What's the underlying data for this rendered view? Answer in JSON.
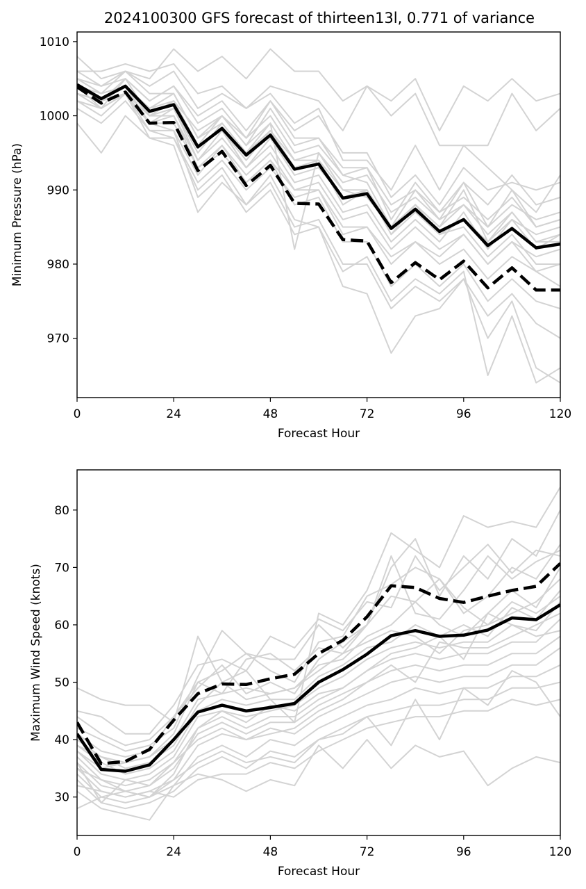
{
  "chart_data": [
    {
      "type": "line",
      "title": "2024100300 GFS forecast of thirteen13l, 0.771 of variance",
      "xlabel": "Forecast Hour",
      "ylabel": "Minimum Pressure (hPa)",
      "xlim": [
        0,
        120
      ],
      "ylim": [
        962,
        1011.3
      ],
      "xticks": [
        0,
        24,
        48,
        72,
        96,
        120
      ],
      "yticks": [
        970,
        980,
        990,
        1000,
        1010
      ],
      "x": [
        0,
        6,
        12,
        18,
        24,
        30,
        36,
        42,
        48,
        54,
        60,
        66,
        72,
        78,
        84,
        90,
        96,
        102,
        108,
        114,
        120
      ],
      "series": [
        {
          "style": "solid",
          "values": [
            1004.2,
            1002.3,
            1004.0,
            1000.6,
            1001.5,
            995.8,
            998.3,
            994.7,
            997.4,
            992.8,
            993.5,
            988.9,
            989.5,
            984.8,
            987.4,
            984.4,
            986.0,
            982.5,
            984.8,
            982.2,
            982.7
          ]
        },
        {
          "style": "dashed",
          "values": [
            1003.9,
            1001.7,
            1003.2,
            999.0,
            999.1,
            992.6,
            995.2,
            990.6,
            993.3,
            988.2,
            988.1,
            983.3,
            983.1,
            977.5,
            980.2,
            977.9,
            980.4,
            976.8,
            979.5,
            976.5,
            976.5
          ]
        }
      ],
      "ensemble": [
        [
          1008,
          1005,
          1006,
          1005,
          1009,
          1006,
          1008,
          1005,
          1009,
          1006,
          1006,
          1002,
          1004,
          1002,
          1005,
          998,
          1004,
          1002,
          1005,
          1002,
          1003
        ],
        [
          1006,
          1006,
          1007,
          1006,
          1007,
          1003,
          1004,
          1001,
          1004,
          1003,
          1002,
          998,
          1004,
          1000,
          1003,
          996,
          996,
          996,
          1003,
          998,
          1001
        ],
        [
          1005,
          1003,
          1006,
          1004,
          1006,
          1001,
          1003,
          1001,
          1003,
          999,
          1001,
          994,
          994,
          990,
          996,
          990,
          996,
          993,
          990,
          987,
          992
        ],
        [
          1004,
          1001,
          1005,
          1002,
          1004,
          999,
          1001,
          997,
          1002,
          997,
          997,
          993,
          993,
          986,
          991,
          987,
          991,
          988,
          992,
          988,
          989
        ],
        [
          1003,
          1002,
          1004,
          1000,
          1002,
          996,
          1000,
          996,
          999,
          994,
          995,
          991,
          992,
          987,
          989,
          986,
          988,
          985,
          988,
          986,
          987
        ],
        [
          1002,
          1000,
          1003,
          999,
          1001,
          994,
          998,
          993,
          997,
          992,
          993,
          989,
          990,
          985,
          988,
          984,
          986,
          983,
          986,
          984,
          985
        ],
        [
          1001,
          999,
          1002,
          998,
          998,
          992,
          996,
          992,
          995,
          990,
          991,
          986,
          987,
          982,
          985,
          982,
          984,
          980,
          983,
          981,
          982
        ],
        [
          999,
          995,
          1000,
          997,
          997,
          991,
          994,
          990,
          993,
          989,
          990,
          984,
          985,
          980,
          983,
          980,
          982,
          978,
          981,
          979,
          980
        ],
        [
          1006,
          1004,
          1006,
          1003,
          1003,
          997,
          999,
          995,
          998,
          993,
          994,
          988,
          990,
          984,
          987,
          984,
          985,
          981,
          984,
          980,
          980
        ],
        [
          1004,
          1002,
          1004,
          999,
          999,
          993,
          996,
          991,
          994,
          988,
          989,
          983,
          983,
          977,
          980,
          977,
          980,
          975,
          978,
          975,
          974
        ],
        [
          1003,
          1001,
          1003,
          998,
          997,
          990,
          993,
          988,
          991,
          985,
          986,
          980,
          980,
          974,
          977,
          975,
          978,
          973,
          976,
          972,
          970
        ],
        [
          1003,
          1002,
          1003,
          999,
          998,
          989,
          992,
          987,
          990,
          984,
          985,
          979,
          981,
          975,
          978,
          976,
          979,
          965,
          973,
          964,
          966
        ],
        [
          1002,
          1001,
          1003,
          997,
          996,
          987,
          991,
          988,
          992,
          986,
          985,
          977,
          976,
          968,
          973,
          974,
          978,
          970,
          975,
          966,
          964
        ],
        [
          1005,
          1003,
          1004,
          1001,
          1002,
          998,
          1000,
          996,
          1001,
          996,
          997,
          992,
          991,
          985,
          990,
          986,
          991,
          985,
          990,
          985,
          986
        ],
        [
          1004,
          1002,
          1005,
          1000,
          1001,
          995,
          999,
          995,
          999,
          982,
          995,
          990,
          990,
          984,
          988,
          985,
          990,
          983,
          987,
          983,
          984
        ],
        [
          1005,
          1004,
          1005,
          1002,
          1004,
          1000,
          1002,
          998,
          1002,
          998,
          1000,
          995,
          995,
          989,
          992,
          988,
          993,
          990,
          991,
          990,
          991
        ],
        [
          1003,
          1002,
          1004,
          1001,
          1003,
          997,
          1000,
          997,
          1000,
          995,
          996,
          992,
          993,
          988,
          990,
          987,
          989,
          986,
          989,
          985,
          986
        ],
        [
          1002,
          1001,
          1003,
          999,
          1000,
          994,
          997,
          993,
          996,
          991,
          992,
          987,
          988,
          983,
          986,
          983,
          987,
          982,
          986,
          982,
          984
        ],
        [
          1004,
          1003,
          1004,
          1000,
          1002,
          996,
          998,
          994,
          998,
          994,
          994,
          990,
          989,
          985,
          988,
          985,
          988,
          984,
          987,
          983,
          983
        ],
        [
          1003,
          1002,
          1003,
          1000,
          1000,
          993,
          995,
          991,
          994,
          990,
          990,
          985,
          985,
          981,
          983,
          981,
          984,
          980,
          983,
          979,
          977
        ]
      ]
    },
    {
      "type": "line",
      "title": "",
      "xlabel": "Forecast Hour",
      "ylabel": "Maximum Wind Speed (knots)",
      "xlim": [
        0,
        120
      ],
      "ylim": [
        23.3,
        87
      ],
      "xticks": [
        0,
        24,
        48,
        72,
        96,
        120
      ],
      "yticks": [
        30,
        40,
        50,
        60,
        70,
        80
      ],
      "x": [
        0,
        6,
        12,
        18,
        24,
        30,
        36,
        42,
        48,
        54,
        60,
        66,
        72,
        78,
        84,
        90,
        96,
        102,
        108,
        114,
        120
      ],
      "series": [
        {
          "style": "solid",
          "values": [
            41.0,
            34.8,
            34.5,
            35.6,
            40.0,
            44.8,
            46.0,
            45.0,
            45.6,
            46.3,
            50.0,
            52.2,
            54.9,
            58.1,
            59.0,
            58.0,
            58.2,
            59.1,
            61.2,
            60.9,
            63.5
          ]
        },
        {
          "style": "dashed",
          "values": [
            43.0,
            35.8,
            36.2,
            38.3,
            43.4,
            48.0,
            49.7,
            49.6,
            50.6,
            51.4,
            55.0,
            57.3,
            61.4,
            66.8,
            66.5,
            64.6,
            63.9,
            65.0,
            66.0,
            66.7,
            70.7
          ]
        }
      ],
      "ensemble": [
        [
          49,
          47,
          46,
          46,
          43,
          58,
          50,
          52,
          47,
          43,
          62,
          60,
          66,
          76,
          73,
          70,
          79,
          77,
          78,
          77,
          84
        ],
        [
          44,
          41,
          39,
          40,
          44,
          49,
          53,
          48,
          50,
          48,
          54,
          57,
          60,
          70,
          75,
          65,
          72,
          68,
          75,
          72,
          80
        ],
        [
          42,
          40,
          38,
          39,
          42,
          51,
          59,
          55,
          52,
          50,
          57,
          58,
          65,
          67,
          70,
          68,
          62,
          65,
          70,
          68,
          74
        ],
        [
          41,
          38,
          37,
          38,
          44,
          50,
          48,
          54,
          55,
          52,
          56,
          55,
          60,
          72,
          62,
          61,
          66,
          72,
          68,
          71,
          73
        ],
        [
          40,
          37,
          35,
          36,
          39,
          46,
          50,
          47,
          48,
          49,
          53,
          54,
          58,
          60,
          64,
          60,
          58,
          62,
          66,
          63,
          70
        ],
        [
          39,
          36,
          34,
          35,
          38,
          45,
          47,
          46,
          47,
          47,
          51,
          53,
          56,
          57,
          60,
          58,
          60,
          58,
          63,
          61,
          66
        ],
        [
          38,
          34,
          33,
          34,
          37,
          44,
          45,
          44,
          45,
          46,
          49,
          51,
          54,
          56,
          57,
          56,
          57,
          57,
          60,
          59,
          64
        ],
        [
          37,
          33,
          32,
          33,
          36,
          42,
          44,
          42,
          44,
          44,
          47,
          49,
          52,
          54,
          55,
          54,
          55,
          55,
          57,
          57,
          61
        ],
        [
          36,
          32,
          31,
          32,
          35,
          41,
          43,
          41,
          43,
          43,
          46,
          48,
          50,
          52,
          53,
          52,
          53,
          53,
          55,
          55,
          58
        ],
        [
          35,
          31,
          30,
          31,
          33,
          39,
          41,
          40,
          42,
          41,
          44,
          46,
          48,
          50,
          51,
          50,
          51,
          51,
          53,
          53,
          56
        ],
        [
          34,
          30,
          29,
          30,
          32,
          37,
          39,
          37,
          40,
          39,
          42,
          44,
          46,
          47,
          49,
          48,
          49,
          49,
          51,
          51,
          53
        ],
        [
          33,
          29,
          28,
          29,
          31,
          35,
          37,
          35,
          38,
          37,
          40,
          42,
          44,
          45,
          46,
          46,
          47,
          47,
          49,
          49,
          50
        ],
        [
          32,
          31,
          30,
          31,
          30,
          33,
          34,
          34,
          36,
          35,
          38,
          40,
          42,
          43,
          44,
          44,
          45,
          45,
          47,
          46,
          47
        ],
        [
          31,
          28,
          27,
          26,
          32,
          34,
          33,
          31,
          33,
          32,
          39,
          35,
          40,
          35,
          39,
          37,
          38,
          32,
          35,
          37,
          36
        ],
        [
          28,
          30,
          31,
          30,
          33,
          36,
          38,
          36,
          37,
          36,
          40,
          41,
          44,
          39,
          47,
          40,
          49,
          46,
          52,
          50,
          44
        ],
        [
          45,
          44,
          41,
          41,
          46,
          53,
          54,
          52,
          58,
          56,
          61,
          59,
          64,
          63,
          72,
          66,
          70,
          74,
          69,
          73,
          72
        ],
        [
          38,
          35,
          36,
          37,
          41,
          50,
          52,
          55,
          54,
          54,
          60,
          56,
          60,
          65,
          64,
          68,
          63,
          60,
          64,
          62,
          65
        ],
        [
          36,
          29,
          33,
          32,
          36,
          40,
          42,
          40,
          41,
          42,
          45,
          47,
          50,
          53,
          50,
          57,
          56,
          56,
          58,
          60,
          62
        ],
        [
          35,
          33,
          31,
          30,
          34,
          42,
          45,
          43,
          46,
          45,
          48,
          49,
          52,
          55,
          56,
          58,
          54,
          62,
          60,
          58,
          59
        ],
        [
          39,
          37,
          36,
          37,
          40,
          47,
          48,
          49,
          48,
          49,
          52,
          55,
          57,
          59,
          58,
          55,
          59,
          60,
          62,
          64,
          68
        ]
      ]
    }
  ]
}
